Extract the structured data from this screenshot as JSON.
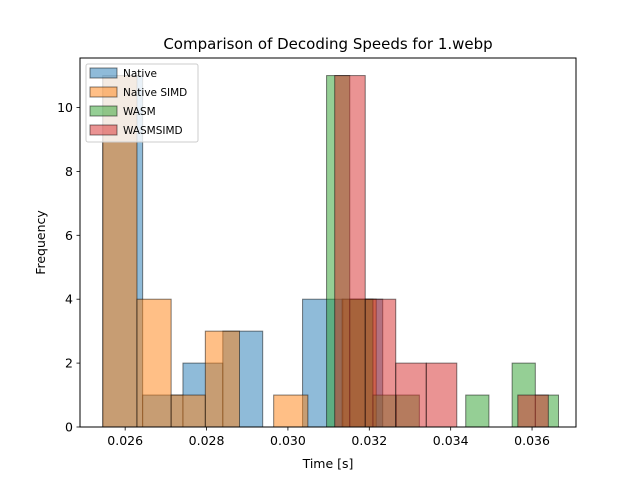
{
  "chart_data": {
    "type": "histogram",
    "title": "Comparison of Decoding Speeds for 1.webp",
    "xlabel": "Time [s]",
    "ylabel": "Frequency",
    "xlim": [
      0.02489,
      0.03708
    ],
    "ylim": [
      0,
      11.55
    ],
    "xticks": [
      0.026,
      0.028,
      0.03,
      0.032,
      0.034,
      0.036
    ],
    "xtick_labels": [
      "0.026",
      "0.028",
      "0.030",
      "0.032",
      "0.034",
      "0.036"
    ],
    "yticks": [
      0,
      2,
      4,
      6,
      8,
      10
    ],
    "ytick_labels": [
      "0",
      "2",
      "4",
      "6",
      "8",
      "10"
    ],
    "legend_position": "top-left",
    "grid": false,
    "series": [
      {
        "name": "Native",
        "color": "#1f77b4",
        "bins": [
          [
            0.02545,
            0.02643,
            11
          ],
          [
            0.02643,
            0.02742,
            1
          ],
          [
            0.02742,
            0.0284,
            2
          ],
          [
            0.0284,
            0.02938,
            3
          ],
          [
            0.02938,
            0.03036,
            0
          ],
          [
            0.03036,
            0.03135,
            4
          ],
          [
            0.03135,
            0.03233,
            4
          ]
        ]
      },
      {
        "name": "Native SIMD",
        "color": "#ff7f0e",
        "bins": [
          [
            0.02545,
            0.02629,
            11
          ],
          [
            0.02629,
            0.02713,
            4
          ],
          [
            0.02713,
            0.02797,
            1
          ],
          [
            0.02797,
            0.02881,
            3
          ],
          [
            0.02881,
            0.02965,
            0
          ],
          [
            0.02965,
            0.03049,
            1
          ],
          [
            0.03049,
            0.03133,
            0
          ],
          [
            0.03133,
            0.03217,
            4
          ]
        ]
      },
      {
        "name": "WASM",
        "color": "#2ca02c",
        "bins": [
          [
            0.03095,
            0.03152,
            11
          ],
          [
            0.03152,
            0.03209,
            4
          ],
          [
            0.03209,
            0.03266,
            1
          ],
          [
            0.03266,
            0.03323,
            1
          ],
          [
            0.03323,
            0.0338,
            0
          ],
          [
            0.0338,
            0.03437,
            0
          ],
          [
            0.03437,
            0.03494,
            1
          ],
          [
            0.03494,
            0.03551,
            0
          ],
          [
            0.03551,
            0.03608,
            2
          ],
          [
            0.03608,
            0.03665,
            1
          ]
        ]
      },
      {
        "name": "WASMSIMD",
        "color": "#d62728",
        "bins": [
          [
            0.03115,
            0.0319,
            11
          ],
          [
            0.0319,
            0.03265,
            4
          ],
          [
            0.03265,
            0.0334,
            2
          ],
          [
            0.0334,
            0.03415,
            2
          ],
          [
            0.03415,
            0.0349,
            0
          ],
          [
            0.0349,
            0.03565,
            0
          ],
          [
            0.03565,
            0.0364,
            1
          ]
        ]
      }
    ]
  }
}
